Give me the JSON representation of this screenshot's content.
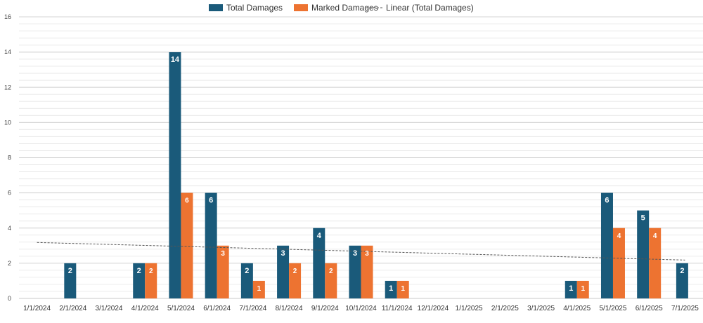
{
  "chart_data": {
    "type": "bar",
    "categories": [
      "1/1/2024",
      "2/1/2024",
      "3/1/2024",
      "4/1/2024",
      "5/1/2024",
      "6/1/2024",
      "7/1/2024",
      "8/1/2024",
      "9/1/2024",
      "10/1/2024",
      "11/1/2024",
      "12/1/2024",
      "1/1/2025",
      "2/1/2025",
      "3/1/2025",
      "4/1/2025",
      "5/1/2025",
      "6/1/2025",
      "7/1/2025"
    ],
    "series": [
      {
        "name": "Total Damages",
        "color": "#1a5a7a",
        "values": [
          null,
          2,
          null,
          2,
          14,
          6,
          2,
          3,
          4,
          3,
          1,
          null,
          null,
          null,
          null,
          1,
          6,
          5,
          2
        ]
      },
      {
        "name": "Marked Damages",
        "color": "#ed7331",
        "values": [
          null,
          null,
          null,
          2,
          6,
          3,
          1,
          2,
          2,
          3,
          1,
          null,
          null,
          null,
          null,
          1,
          4,
          4,
          null
        ]
      }
    ],
    "trendline": {
      "name": "Linear (Total Damages)",
      "of_series": "Total Damages",
      "color": "#555555",
      "style": "dashed",
      "start_value": 3.18,
      "end_value": 2.18
    },
    "yticks": [
      0,
      2,
      4,
      6,
      8,
      10,
      12,
      14,
      16
    ],
    "ylim": [
      0,
      16
    ],
    "grid": true,
    "minor_grid": true,
    "legend_position": "top",
    "data_labels": true,
    "title": "",
    "xlabel": "",
    "ylabel": ""
  }
}
